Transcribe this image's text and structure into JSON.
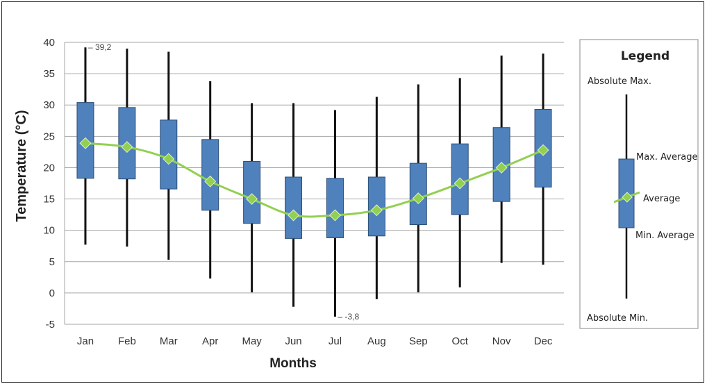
{
  "chart_data": {
    "type": "box",
    "xlabel": "Months",
    "ylabel": "Temperature (°C)",
    "ylim": [
      -5,
      40
    ],
    "yticks": [
      -5,
      0,
      5,
      10,
      15,
      20,
      25,
      30,
      35,
      40
    ],
    "grid": "horizontal",
    "categories": [
      "Jan",
      "Feb",
      "Mar",
      "Apr",
      "May",
      "Jun",
      "Jul",
      "Aug",
      "Sep",
      "Oct",
      "Nov",
      "Dec"
    ],
    "absolute_max": [
      39.2,
      39.0,
      38.5,
      33.8,
      30.3,
      30.3,
      29.2,
      31.3,
      33.3,
      34.3,
      37.9,
      38.2
    ],
    "absolute_min": [
      7.7,
      7.4,
      5.3,
      2.3,
      0.1,
      -2.2,
      -3.8,
      -1.0,
      0.1,
      0.9,
      4.8,
      4.5
    ],
    "max_average": [
      30.4,
      29.6,
      27.6,
      24.5,
      21.0,
      18.5,
      18.3,
      18.5,
      20.7,
      23.8,
      26.4,
      29.3
    ],
    "min_average": [
      18.3,
      18.2,
      16.6,
      13.2,
      11.1,
      8.7,
      8.8,
      9.1,
      10.9,
      12.5,
      14.6,
      16.9
    ],
    "average": [
      23.9,
      23.3,
      21.4,
      17.8,
      15.0,
      12.4,
      12.4,
      13.2,
      15.1,
      17.5,
      20.0,
      22.8
    ],
    "annotations": [
      {
        "label": "39,2",
        "month": "Jan",
        "value": 39.2
      },
      {
        "label": "-3,8",
        "month": "Jul",
        "value": -3.8
      }
    ],
    "colors": {
      "box": "#4f81bd",
      "box_edge": "#2c4d75",
      "whisker": "#111111",
      "average": "#92d050",
      "grid": "#a6a6a6"
    }
  },
  "legend": {
    "title": "Legend",
    "absolute_max": "Absolute Max.",
    "max_average": "Max. Average",
    "average": "Average",
    "min_average": "Min. Average",
    "absolute_min": "Absolute Min."
  }
}
